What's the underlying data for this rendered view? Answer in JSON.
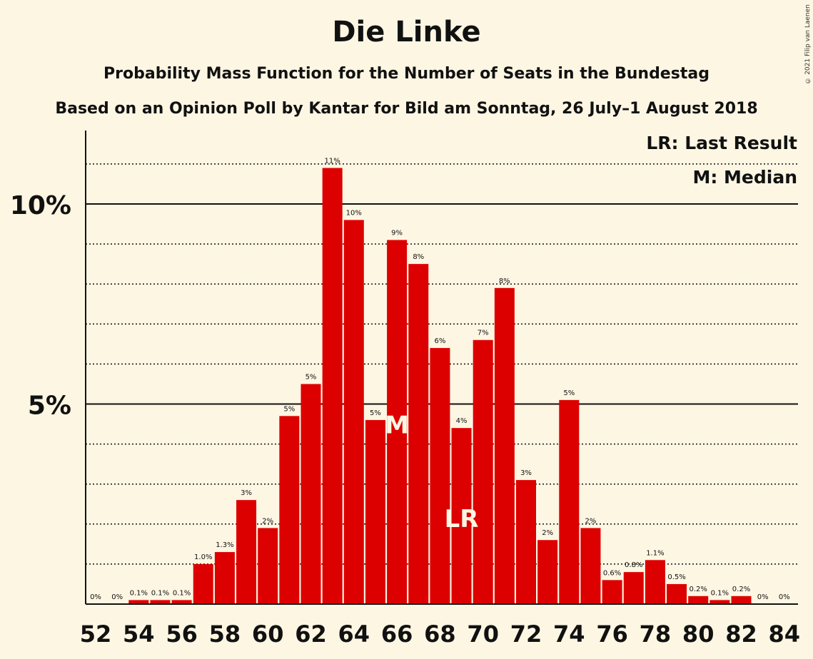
{
  "title": "Die Linke",
  "subtitle1": "Probability Mass Function for the Number of Seats in the Bundestag",
  "subtitle2": "Based on an Opinion Poll by Kantar for Bild am Sonntag, 26 July–1 August 2018",
  "copyright": "© 2021 Filip van Laenen",
  "legend": {
    "lr": "LR: Last Result",
    "m": "M: Median"
  },
  "colors": {
    "bar": "#dd0000",
    "background": "#fdf6e3"
  },
  "chart_data": {
    "type": "bar",
    "x": [
      52,
      53,
      54,
      55,
      56,
      57,
      58,
      59,
      60,
      61,
      62,
      63,
      64,
      65,
      66,
      67,
      68,
      69,
      70,
      71,
      72,
      73,
      74,
      75,
      76,
      77,
      78,
      79,
      80,
      81,
      82,
      83,
      84
    ],
    "values": [
      0,
      0,
      0.1,
      0.1,
      0.1,
      1.0,
      1.3,
      2.6,
      1.9,
      4.7,
      5.5,
      10.9,
      9.6,
      4.6,
      9.1,
      8.5,
      6.4,
      4.4,
      6.6,
      7.9,
      3.1,
      1.6,
      5.1,
      1.9,
      0.6,
      0.8,
      1.1,
      0.5,
      0.2,
      0.1,
      0.2,
      0,
      0
    ],
    "labels": [
      "0%",
      "0%",
      "0.1%",
      "0.1%",
      "0.1%",
      "1.0%",
      "1.3%",
      "3%",
      "2%",
      "5%",
      "5%",
      "11%",
      "10%",
      "5%",
      "9%",
      "8%",
      "6%",
      "4%",
      "7%",
      "8%",
      "3%",
      "2%",
      "5%",
      "2%",
      "0.6%",
      "0.8%",
      "1.1%",
      "0.5%",
      "0.2%",
      "0.1%",
      "0.2%",
      "0%",
      "0%"
    ],
    "xticks": [
      "52",
      "54",
      "56",
      "58",
      "60",
      "62",
      "64",
      "66",
      "68",
      "70",
      "72",
      "74",
      "76",
      "78",
      "80",
      "82",
      "84"
    ],
    "yticks": [
      {
        "value": 5,
        "label": "5%"
      },
      {
        "value": 10,
        "label": "10%"
      }
    ],
    "ylim": [
      0,
      11.9
    ],
    "median": 66,
    "median_label": "M",
    "last_result": 69,
    "last_result_label": "LR"
  }
}
